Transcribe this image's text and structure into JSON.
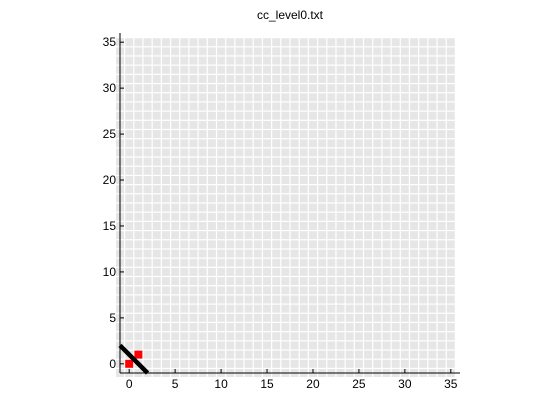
{
  "chart_data": {
    "type": "heatmap",
    "title": "cc_level0.txt",
    "xlabel": "",
    "ylabel": "",
    "xlim": [
      -1,
      36
    ],
    "ylim": [
      -1,
      36
    ],
    "xticks": [
      0,
      5,
      10,
      15,
      20,
      25,
      30,
      35
    ],
    "yticks": [
      0,
      5,
      10,
      15,
      20,
      25,
      30,
      35
    ],
    "grid": true,
    "cell_color": "#e6e6e6",
    "grid_color": "#ffffff",
    "highlight_color": "#ff0000",
    "highlighted_cells": [
      {
        "x": 0,
        "y": 0
      },
      {
        "x": 1,
        "y": 1
      }
    ],
    "line": {
      "color": "#000000",
      "points": [
        [
          -1,
          2
        ],
        [
          2,
          -1
        ]
      ]
    }
  }
}
